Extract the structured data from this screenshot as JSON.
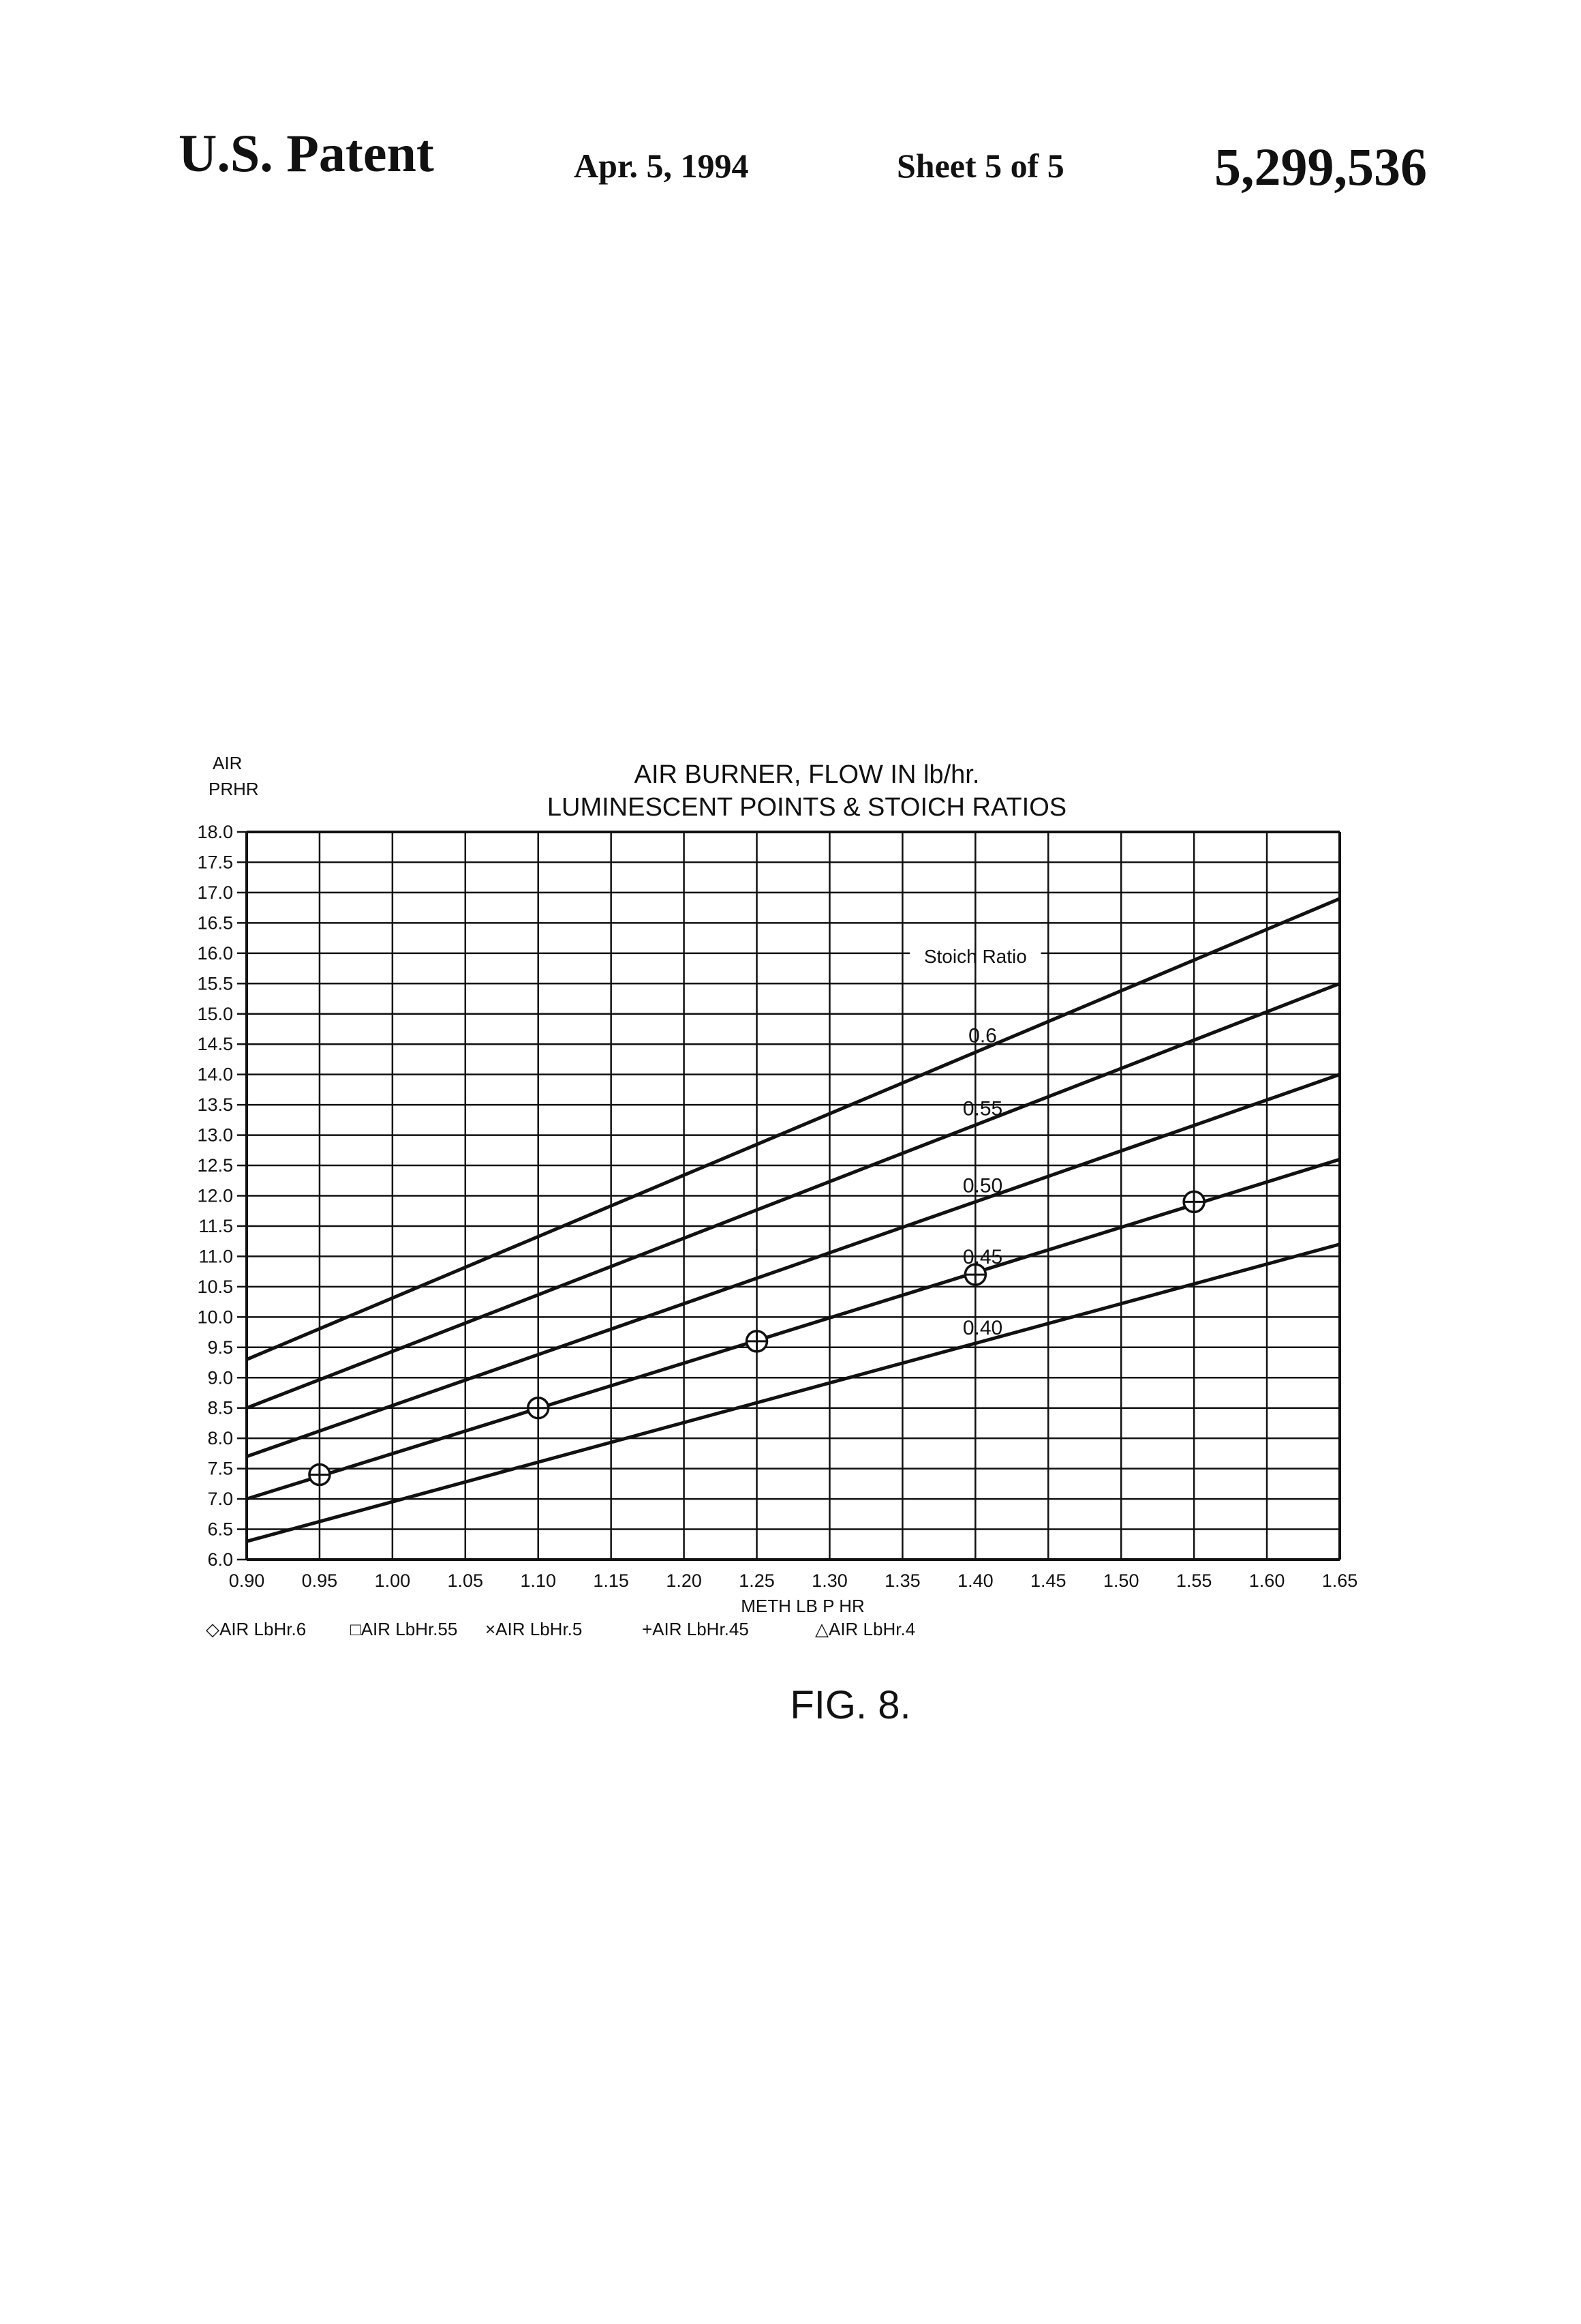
{
  "header": {
    "left": "U.S. Patent",
    "date": "Apr. 5, 1994",
    "sheet": "Sheet 5 of 5",
    "patent_number": "5,299,536"
  },
  "chart_data": {
    "type": "line",
    "title": "AIR BURNER, FLOW IN lb/hr.",
    "subtitle": "LUMINESCENT POINTS & STOICH RATIOS",
    "ylabel_line1": "AIR",
    "ylabel_line2": "PRHR",
    "xlabel": "METH LB P HR",
    "xlim": [
      0.9,
      1.65
    ],
    "ylim": [
      6.0,
      18.0
    ],
    "x_ticks": [
      "0.90",
      "0.95",
      "1.00",
      "1.05",
      "1.10",
      "1.15",
      "1.20",
      "1.25",
      "1.30",
      "1.35",
      "1.40",
      "1.45",
      "1.50",
      "1.55",
      "1.60",
      "1.65"
    ],
    "y_ticks": [
      "6.0",
      "6.5",
      "7.0",
      "7.5",
      "8.0",
      "8.5",
      "9.0",
      "9.5",
      "10.0",
      "10.5",
      "11.0",
      "11.5",
      "12.0",
      "12.5",
      "13.0",
      "13.5",
      "14.0",
      "14.5",
      "15.0",
      "15.5",
      "16.0",
      "16.5",
      "17.0",
      "17.5",
      "18.0"
    ],
    "grid": true,
    "stoich_header": "Stoich Ratio",
    "series": [
      {
        "name": "0.6",
        "x": [
          0.9,
          1.65
        ],
        "y": [
          9.3,
          16.9
        ]
      },
      {
        "name": "0.55",
        "x": [
          0.9,
          1.65
        ],
        "y": [
          8.5,
          15.5
        ]
      },
      {
        "name": "0.50",
        "x": [
          0.9,
          1.65
        ],
        "y": [
          7.7,
          14.0
        ]
      },
      {
        "name": "0.45",
        "x": [
          0.9,
          1.65
        ],
        "y": [
          7.0,
          12.6
        ]
      },
      {
        "name": "0.40",
        "x": [
          0.9,
          1.65
        ],
        "y": [
          6.3,
          11.2
        ]
      }
    ],
    "points": [
      {
        "x": 0.95,
        "y": 7.4
      },
      {
        "x": 1.1,
        "y": 8.5
      },
      {
        "x": 1.25,
        "y": 9.6
      },
      {
        "x": 1.4,
        "y": 10.7
      },
      {
        "x": 1.55,
        "y": 11.9
      }
    ],
    "legend": [
      "◇AIR LbHr.6",
      "□AIR LbHr.55",
      "×AIR LbHr.5",
      "+AIR LbHr.45",
      "△AIR LbHr.4"
    ],
    "figure_caption": "FIG. 8."
  }
}
